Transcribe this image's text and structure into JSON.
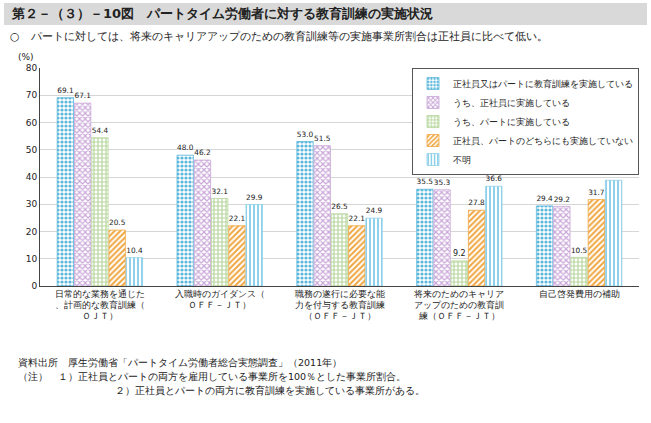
{
  "chart_data": {
    "type": "bar",
    "title": "第２－（３）－10図　パートタイム労働者に対する教育訓練の実施状況",
    "subtitle": "○　パートに対しては、将来のキャリアアップのための教育訓練等の実施事業所割合は正社員に比べて低い。",
    "y_label": "(%)",
    "categories": [
      "日常的な業務を通じた、計画的な教育訓練（ＯＪＴ）",
      "入職時のガイダンス（ＯＦＦ－ＪＴ）",
      "職務の遂行に必要な能力を付与する教育訓練（ＯＦＦ－ＪＴ）",
      "将来のためのキャリアアップのための教育訓練（ＯＦＦ－ＪＴ）",
      "自己啓発費用の補助"
    ],
    "series": [
      {
        "name": "正社員又はパートに教育訓練を実施している",
        "color": "#5bb8dc",
        "marker": "dots",
        "values": [
          69.1,
          48.0,
          53.0,
          35.5,
          29.4
        ]
      },
      {
        "name": "うち、正社員に実施している",
        "color": "#c9a6d8",
        "marker": "cross",
        "values": [
          67.1,
          46.2,
          51.5,
          35.3,
          29.2
        ]
      },
      {
        "name": "うち、パートに実施している",
        "color": "#b5d69a",
        "marker": "grid",
        "values": [
          54.4,
          32.1,
          26.5,
          9.2,
          10.5
        ]
      },
      {
        "name": "正社員、パートのどちらにも実施していない",
        "color": "#f0a640",
        "marker": "diagonal",
        "values": [
          20.5,
          22.1,
          22.1,
          27.8,
          31.7
        ]
      },
      {
        "name": "不明",
        "color": "#8fd0ea",
        "marker": "vertical",
        "values": [
          10.4,
          29.9,
          24.9,
          36.6,
          38.8
        ]
      }
    ],
    "ylim": [
      0,
      80
    ],
    "yticks": [
      0,
      10,
      20,
      30,
      40,
      50,
      60,
      70,
      80
    ],
    "grid": true,
    "legend": "top-right",
    "data_labels": true,
    "annotations": [
      "資料出所　厚生労働省「パートタイム労働者総合実態調査」（2011年）",
      "（注）　１）正社員とパートの両方を雇用している事業所を100％とした事業所割合。",
      "２）正社員とパートの両方に教育訓練を実施している事業所がある。"
    ]
  }
}
